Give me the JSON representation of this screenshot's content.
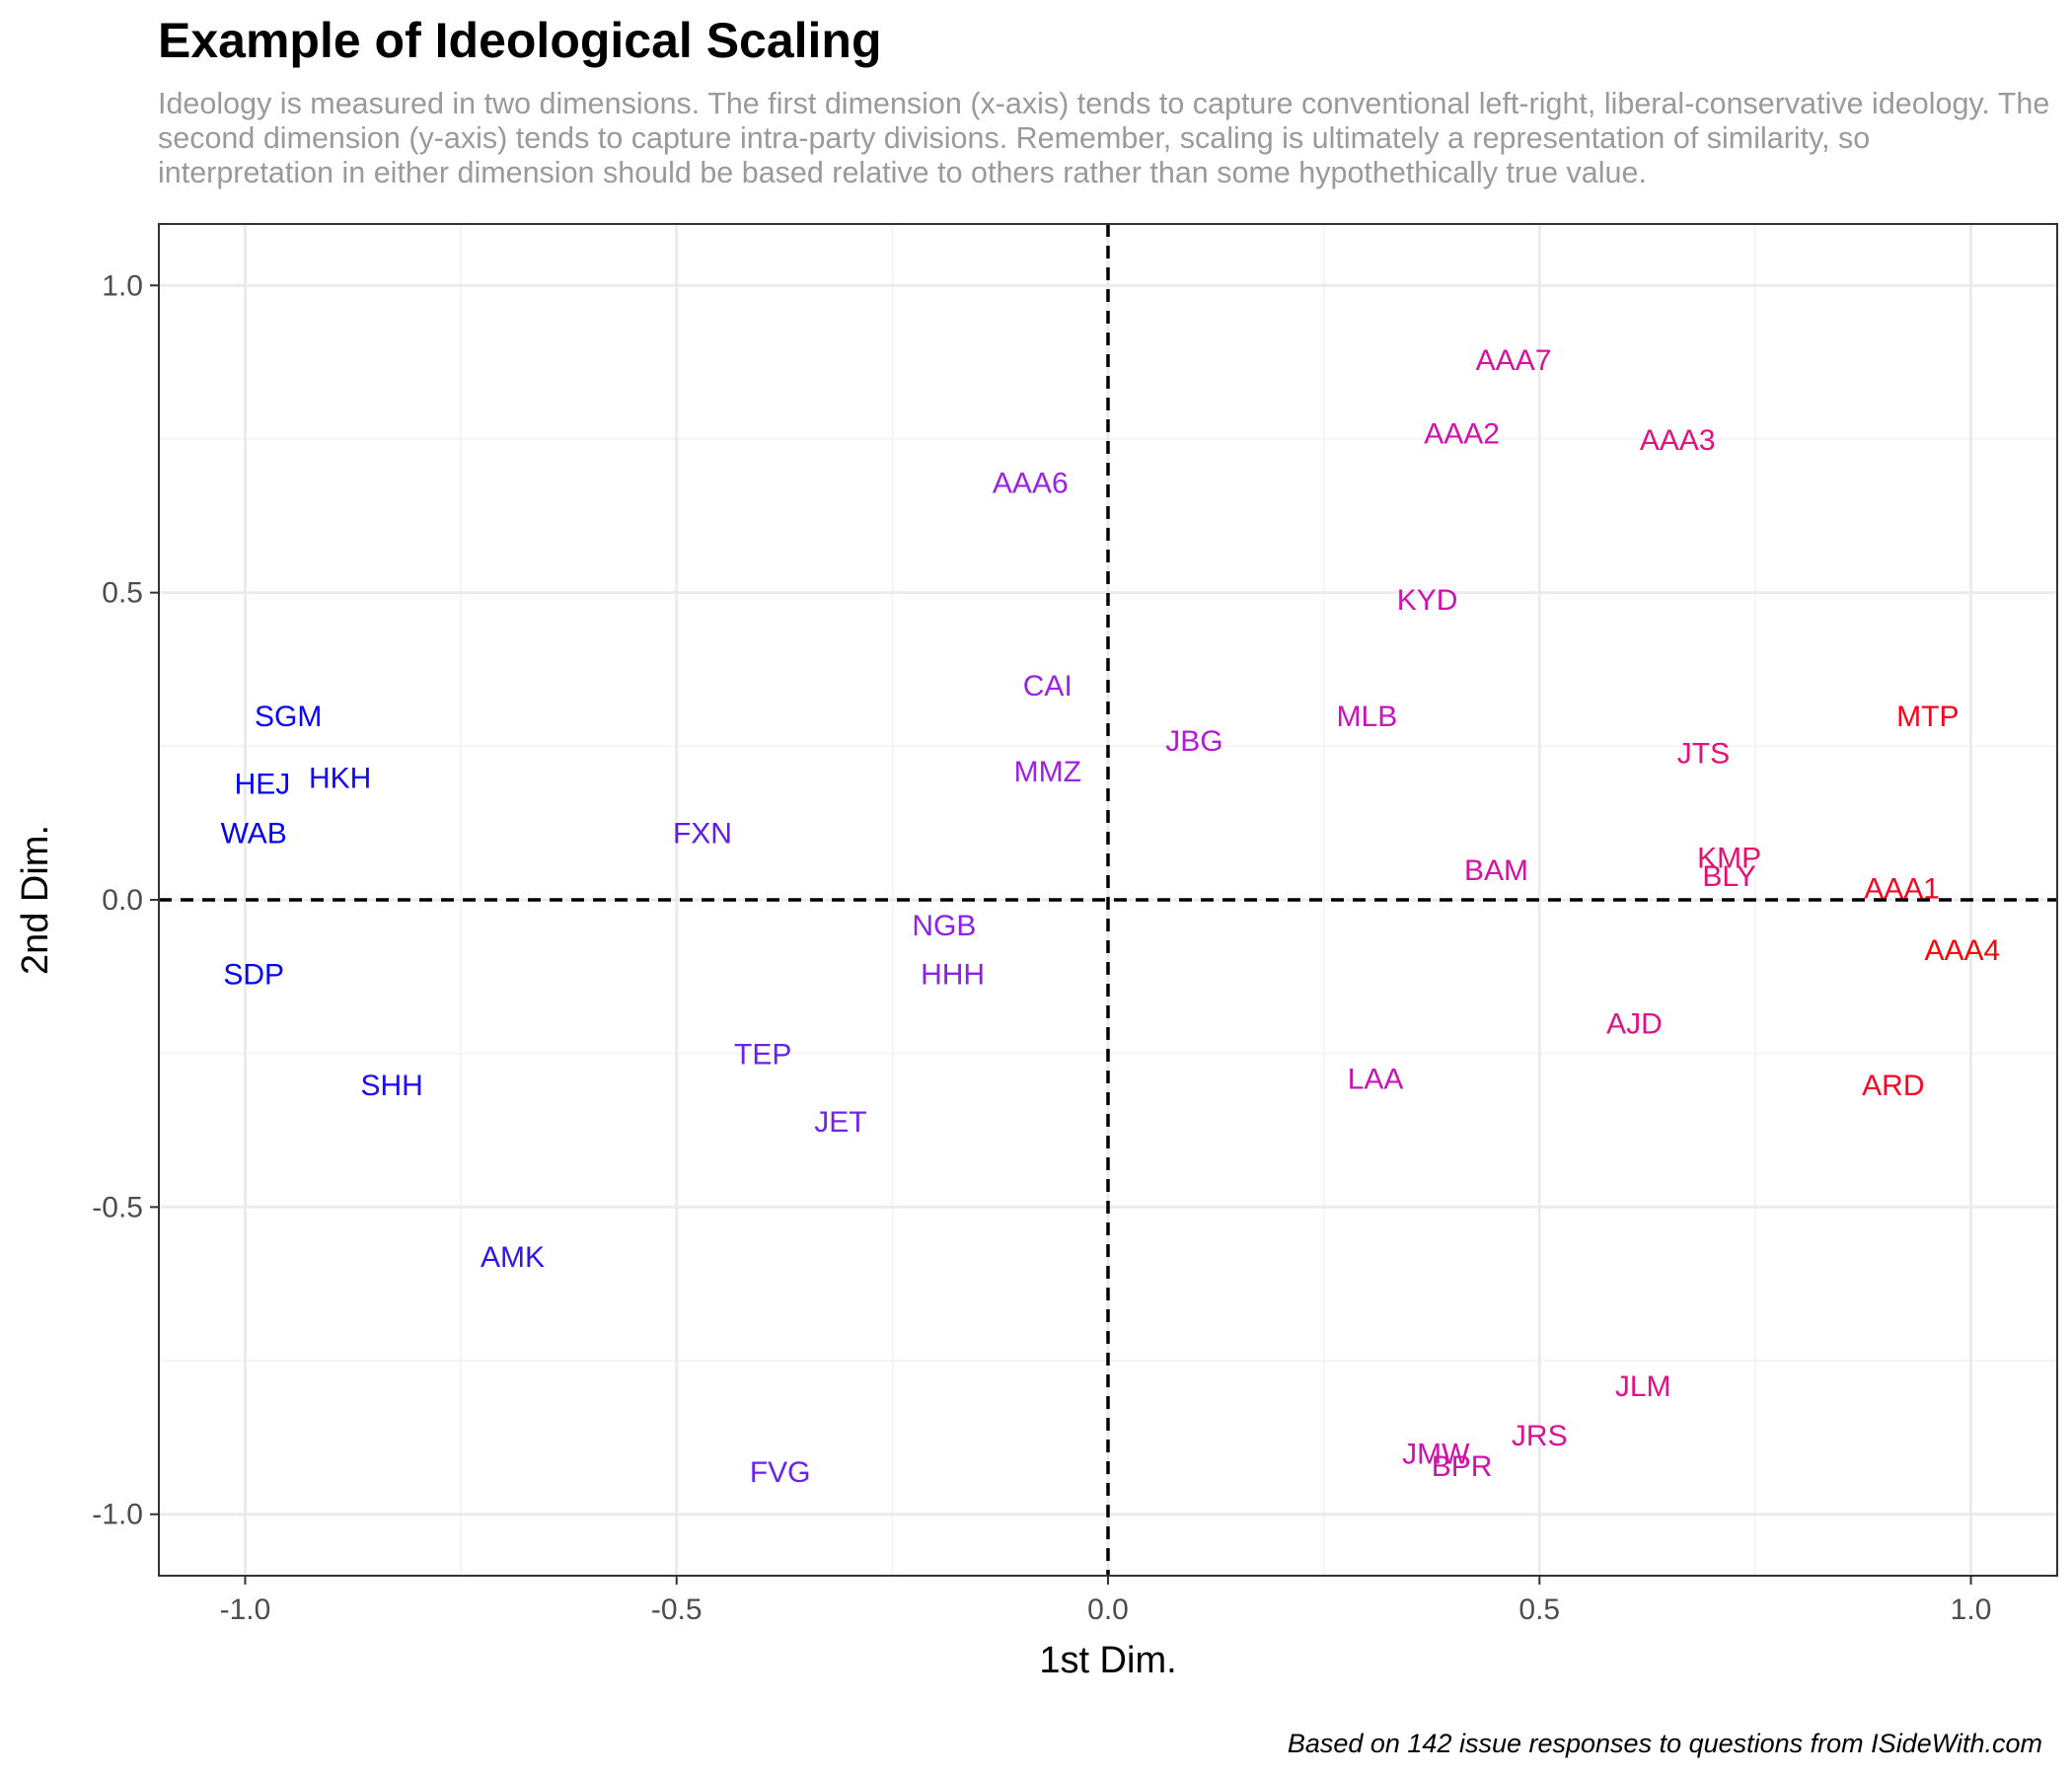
{
  "chart_data": {
    "type": "scatter",
    "title": "Example of Ideological Scaling",
    "subtitle": "Ideology is measured in two dimensions. The first dimension (x-axis) tends to capture conventional left-right, liberal-conservative ideology. The second dimension (y-axis) tends to capture intra-party divisions. Remember, scaling is ultimately a representation of similarity, so interpretation in either dimension should be based relative to others rather than some hypothethically true value.",
    "caption": "Based on 142 issue responses to questions from ISideWith.com",
    "xlabel": "1st Dim.",
    "ylabel": "2nd Dim.",
    "xlim": [
      -1.1,
      1.1
    ],
    "ylim": [
      -1.1,
      1.1
    ],
    "xticks": [
      -1.0,
      -0.5,
      0.0,
      0.5,
      1.0
    ],
    "yticks": [
      -1.0,
      -0.5,
      0.0,
      0.5,
      1.0
    ],
    "xtick_labels": [
      "-1.0",
      "-0.5",
      "0.0",
      "0.5",
      "1.0"
    ],
    "ytick_labels": [
      "-1.0",
      "-0.5",
      "0.0",
      "0.5",
      "1.0"
    ],
    "grid": true,
    "reference_lines": {
      "x": 0,
      "y": 0,
      "style": "dashed"
    },
    "color_scale": {
      "low": "#0000ff",
      "high": "#ff0000",
      "encodes": "1st Dim."
    },
    "points": [
      {
        "label": "SGM",
        "x": -0.95,
        "y": 0.3
      },
      {
        "label": "HEJ",
        "x": -0.98,
        "y": 0.19
      },
      {
        "label": "HKH",
        "x": -0.89,
        "y": 0.2
      },
      {
        "label": "WAB",
        "x": -0.99,
        "y": 0.11
      },
      {
        "label": "SDP",
        "x": -0.99,
        "y": -0.12
      },
      {
        "label": "SHH",
        "x": -0.83,
        "y": -0.3
      },
      {
        "label": "AMK",
        "x": -0.69,
        "y": -0.58
      },
      {
        "label": "FXN",
        "x": -0.47,
        "y": 0.11
      },
      {
        "label": "TEP",
        "x": -0.4,
        "y": -0.25
      },
      {
        "label": "JET",
        "x": -0.31,
        "y": -0.36
      },
      {
        "label": "FVG",
        "x": -0.38,
        "y": -0.93
      },
      {
        "label": "NGB",
        "x": -0.19,
        "y": -0.04
      },
      {
        "label": "HHH",
        "x": -0.18,
        "y": -0.12
      },
      {
        "label": "AAA6",
        "x": -0.09,
        "y": 0.68
      },
      {
        "label": "CAI",
        "x": -0.07,
        "y": 0.35
      },
      {
        "label": "MMZ",
        "x": -0.07,
        "y": 0.21
      },
      {
        "label": "JBG",
        "x": 0.1,
        "y": 0.26
      },
      {
        "label": "MLB",
        "x": 0.3,
        "y": 0.3
      },
      {
        "label": "KYD",
        "x": 0.37,
        "y": 0.49
      },
      {
        "label": "AAA2",
        "x": 0.41,
        "y": 0.76
      },
      {
        "label": "AAA7",
        "x": 0.47,
        "y": 0.88
      },
      {
        "label": "AAA3",
        "x": 0.66,
        "y": 0.75
      },
      {
        "label": "BAM",
        "x": 0.45,
        "y": 0.05
      },
      {
        "label": "JTS",
        "x": 0.69,
        "y": 0.24
      },
      {
        "label": "KMP",
        "x": 0.72,
        "y": 0.07
      },
      {
        "label": "BLY",
        "x": 0.72,
        "y": 0.04
      },
      {
        "label": "MTP",
        "x": 0.95,
        "y": 0.3
      },
      {
        "label": "AAA1",
        "x": 0.92,
        "y": 0.02
      },
      {
        "label": "AAA4",
        "x": 0.99,
        "y": -0.08
      },
      {
        "label": "AJD",
        "x": 0.61,
        "y": -0.2
      },
      {
        "label": "LAA",
        "x": 0.31,
        "y": -0.29
      },
      {
        "label": "ARD",
        "x": 0.91,
        "y": -0.3
      },
      {
        "label": "JLM",
        "x": 0.62,
        "y": -0.79
      },
      {
        "label": "JRS",
        "x": 0.5,
        "y": -0.87
      },
      {
        "label": "JMW",
        "x": 0.38,
        "y": -0.9
      },
      {
        "label": "BPR",
        "x": 0.41,
        "y": -0.92
      }
    ]
  }
}
